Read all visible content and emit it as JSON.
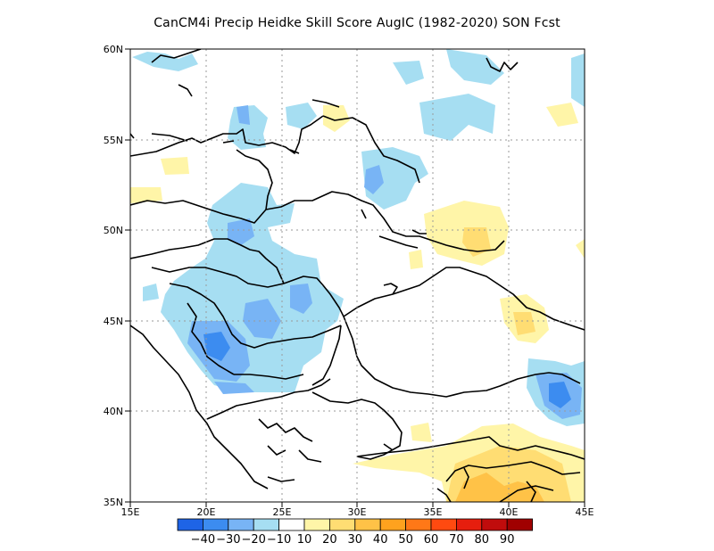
{
  "title": "CanCM4i Precip Heidke Skill Score AugIC (1982-2020) SON Fcst",
  "map": {
    "lon_range": [
      15,
      45
    ],
    "lat_range": [
      35,
      60
    ],
    "gridlines": "dotted",
    "x_ticks": [
      "15E",
      "20E",
      "25E",
      "30E",
      "35E",
      "40E",
      "45E"
    ],
    "y_ticks": [
      "35N",
      "40N",
      "45N",
      "50N",
      "55N",
      "60N"
    ]
  },
  "colorbar": {
    "colors": [
      "#1e64e6",
      "#3c8cf0",
      "#78b4f5",
      "#a6def2",
      "#ffffff",
      "#fff5a8",
      "#ffdd73",
      "#ffc247",
      "#ffa21e",
      "#ff7817",
      "#ff4a10",
      "#e61e0e",
      "#c00c0c",
      "#a00000"
    ],
    "labels": [
      "-40",
      "-30",
      "-20",
      "-10",
      "10",
      "20",
      "30",
      "40",
      "50",
      "60",
      "70",
      "80",
      "90"
    ]
  }
}
